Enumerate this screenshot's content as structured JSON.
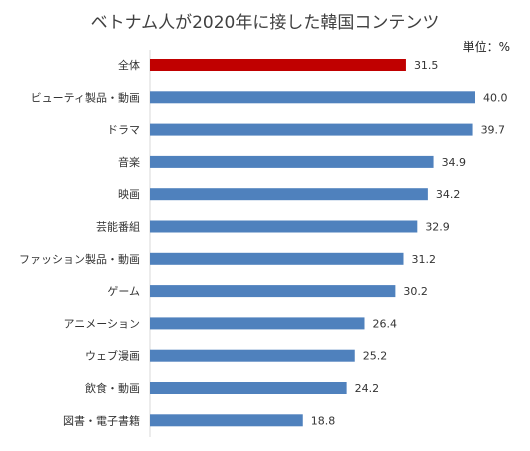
{
  "chart_data": {
    "type": "bar",
    "orientation": "horizontal",
    "title": "ベトナム人が2020年に接した韓国コンテンツ",
    "unit_label": "単位：%",
    "categories": [
      "全体",
      "ビューティ製品・動画",
      "ドラマ",
      "音楽",
      "映画",
      "芸能番組",
      "ファッション製品・動画",
      "ゲーム",
      "アニメーション",
      "ウェブ漫画",
      "飲食・動画",
      "図書・電子書籍"
    ],
    "values": [
      31.5,
      40.0,
      39.7,
      34.9,
      34.2,
      32.9,
      31.2,
      30.2,
      26.4,
      25.2,
      24.2,
      18.8
    ],
    "value_labels": [
      "31.5",
      "40.0",
      "39.7",
      "34.9",
      "34.2",
      "32.9",
      "31.2",
      "30.2",
      "26.4",
      "25.2",
      "24.2",
      "18.8"
    ],
    "xlim": [
      0,
      40
    ],
    "grid": false,
    "legend": "none",
    "colors": {
      "highlight": "#C00000",
      "default": "#4F81BD",
      "axis": "#D9D9D9"
    },
    "highlight_index": 0
  }
}
